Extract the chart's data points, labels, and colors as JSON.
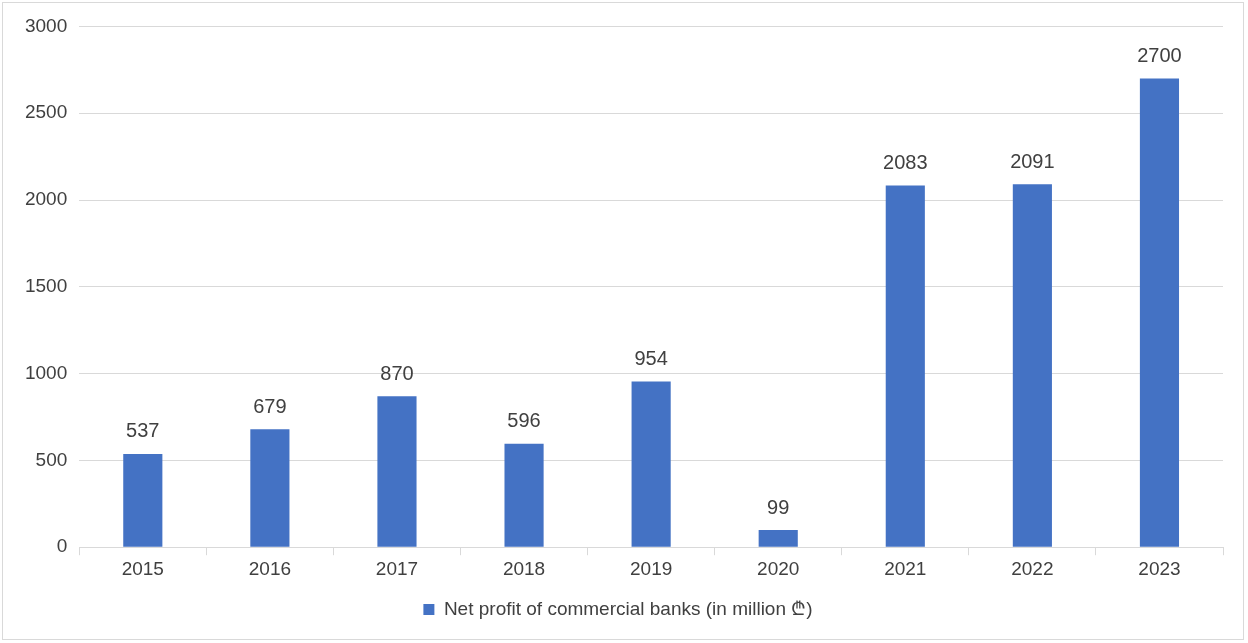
{
  "chart_data": {
    "type": "bar",
    "categories": [
      "2015",
      "2016",
      "2017",
      "2018",
      "2019",
      "2020",
      "2021",
      "2022",
      "2023"
    ],
    "series": [
      {
        "name": "Net profit of commercial banks (in million ₾)",
        "color": "#4472c4",
        "values": [
          537,
          679,
          870,
          596,
          954,
          99,
          2083,
          2091,
          2700
        ]
      }
    ],
    "ylim": [
      0,
      3000
    ],
    "yticks": [
      0,
      500,
      1000,
      1500,
      2000,
      2500,
      3000
    ],
    "grid": "y",
    "legend": "bottom",
    "data_labels": true
  }
}
